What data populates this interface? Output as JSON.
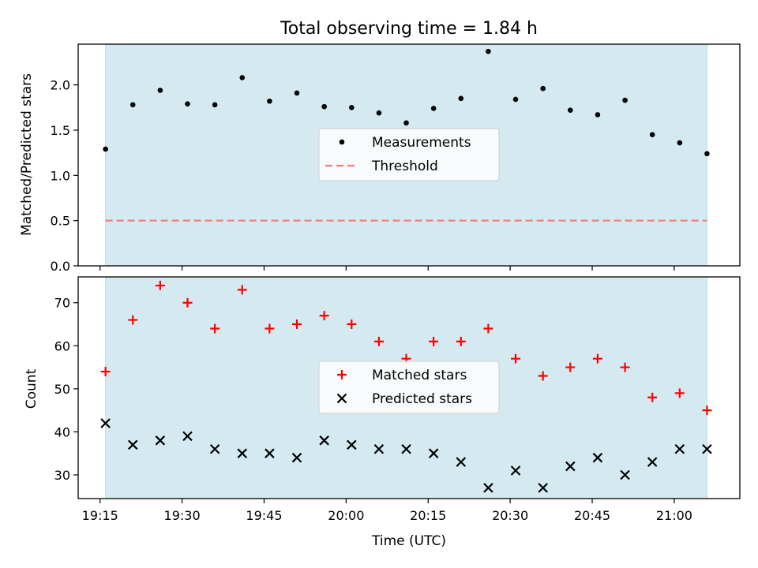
{
  "title": "Total observing time = 1.84 h",
  "colors": {
    "observing_span": "#d4eaf0",
    "measurements": "#000000",
    "threshold": "#f08080",
    "matched": "#ff0000",
    "predicted": "#000000"
  },
  "chart_data": [
    {
      "type": "scatter",
      "ylabel": "Matched/Predicted stars",
      "ylim": [
        0,
        2.45
      ],
      "yticks": [
        "0.0",
        "0.5",
        "1.0",
        "1.5",
        "2.0"
      ],
      "grid": false,
      "legend_placement": "center",
      "shaded_x_range": [
        "19:16",
        "21:06"
      ],
      "x": [
        "19:16",
        "19:21",
        "19:26",
        "19:31",
        "19:36",
        "19:41",
        "19:46",
        "19:51",
        "19:56",
        "20:01",
        "20:06",
        "20:11",
        "20:16",
        "20:21",
        "20:26",
        "20:31",
        "20:36",
        "20:41",
        "20:46",
        "20:51",
        "20:56",
        "21:01",
        "21:06"
      ],
      "series": [
        {
          "name": "Measurements",
          "marker": "dot",
          "values": [
            1.29,
            1.78,
            1.94,
            1.79,
            1.78,
            2.08,
            1.82,
            1.91,
            1.76,
            1.75,
            1.69,
            1.58,
            1.74,
            1.85,
            2.37,
            1.84,
            1.96,
            1.72,
            1.67,
            1.83,
            1.45,
            1.36,
            1.24
          ]
        },
        {
          "name": "Threshold",
          "marker": "dashed-line",
          "values": [
            0.5
          ],
          "x_range": [
            "19:16",
            "21:06"
          ]
        }
      ]
    },
    {
      "type": "scatter",
      "ylabel": "Count",
      "xlabel": "Time (UTC)",
      "ylim": [
        24.5,
        76
      ],
      "yticks": [
        "30",
        "40",
        "50",
        "60",
        "70"
      ],
      "xticks": [
        "19:15",
        "19:30",
        "19:45",
        "20:00",
        "20:15",
        "20:30",
        "20:45",
        "21:00"
      ],
      "grid": false,
      "legend_placement": "center",
      "shaded_x_range": [
        "19:16",
        "21:06"
      ],
      "x": [
        "19:16",
        "19:21",
        "19:26",
        "19:31",
        "19:36",
        "19:41",
        "19:46",
        "19:51",
        "19:56",
        "20:01",
        "20:06",
        "20:11",
        "20:16",
        "20:21",
        "20:26",
        "20:31",
        "20:36",
        "20:41",
        "20:46",
        "20:51",
        "20:56",
        "21:01",
        "21:06"
      ],
      "series": [
        {
          "name": "Matched stars",
          "marker": "plus",
          "values": [
            54,
            66,
            74,
            70,
            64,
            73,
            64,
            65,
            67,
            65,
            61,
            57,
            61,
            61,
            64,
            57,
            53,
            55,
            57,
            55,
            48,
            49,
            45
          ]
        },
        {
          "name": "Predicted stars",
          "marker": "cross",
          "values": [
            42,
            37,
            38,
            39,
            36,
            35,
            35,
            34,
            38,
            37,
            36,
            36,
            35,
            33,
            27,
            31,
            27,
            32,
            34,
            30,
            33,
            36,
            36
          ]
        }
      ]
    }
  ]
}
